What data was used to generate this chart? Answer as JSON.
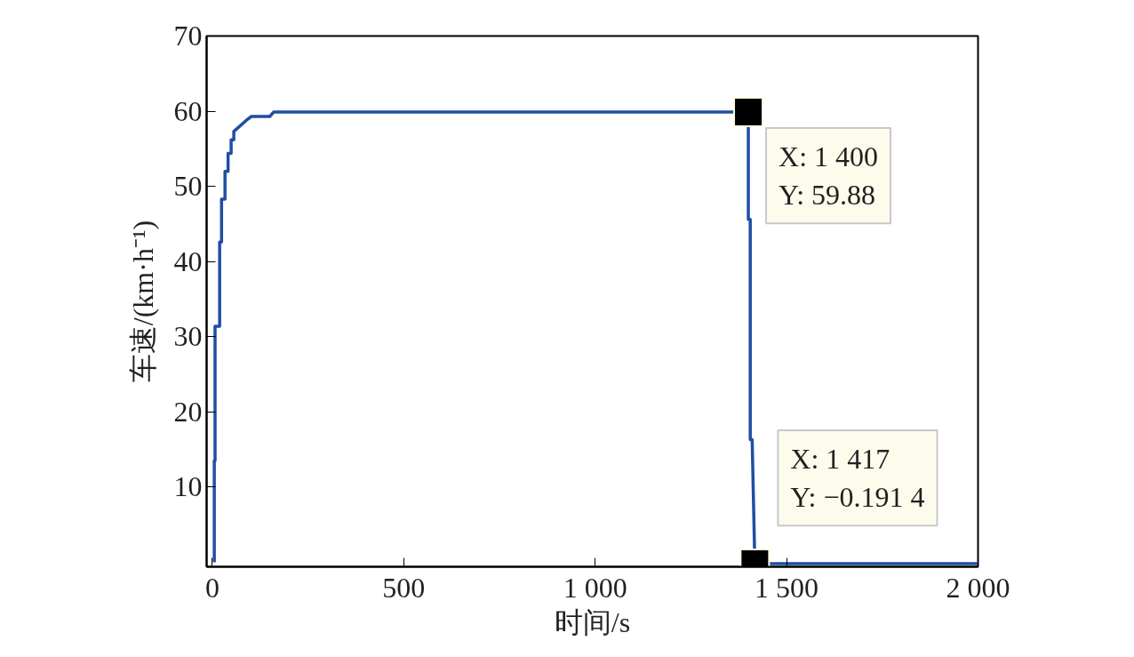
{
  "chart_data": {
    "type": "line",
    "xlabel": "时间/s",
    "ylabel": "车速/(km·h⁻¹)",
    "x": [
      5,
      5,
      7,
      7,
      19,
      19,
      24,
      24,
      33,
      33,
      41,
      41,
      49,
      49,
      56,
      56,
      89,
      102,
      150,
      160,
      1400,
      1400,
      1405,
      1405,
      1410,
      1417,
      2000
    ],
    "series": [
      {
        "color": "#1f4ea3",
        "values": [
          0,
          13.5,
          13.5,
          31.4,
          31.4,
          42.6,
          42.6,
          48.3,
          48.3,
          52.0,
          52.0,
          54.4,
          54.4,
          56.2,
          56.2,
          57.3,
          58.8,
          59.3,
          59.3,
          59.88,
          59.88,
          45.6,
          45.6,
          16.3,
          16.3,
          -0.1914,
          -0.1914
        ]
      }
    ],
    "xlim": [
      -15,
      2000
    ],
    "ylim": [
      -0.6,
      70
    ],
    "xticks": [
      0,
      500,
      {
        "value": 1000,
        "label": "1 000"
      },
      {
        "value": 1500,
        "label": "1 500"
      },
      {
        "value": 2000,
        "label": "2 000"
      }
    ],
    "yticks": [
      10,
      20,
      30,
      40,
      50,
      60,
      70
    ],
    "grid": false,
    "marker": "none",
    "line_style": "solid",
    "annotations": [
      {
        "text": "X: 1 400\nY: 59.88",
        "x": 1400,
        "y": 59.88
      },
      {
        "text": "X: 1 417\nY: −0.191 4",
        "x": 1417,
        "y": -0.1914
      }
    ]
  }
}
